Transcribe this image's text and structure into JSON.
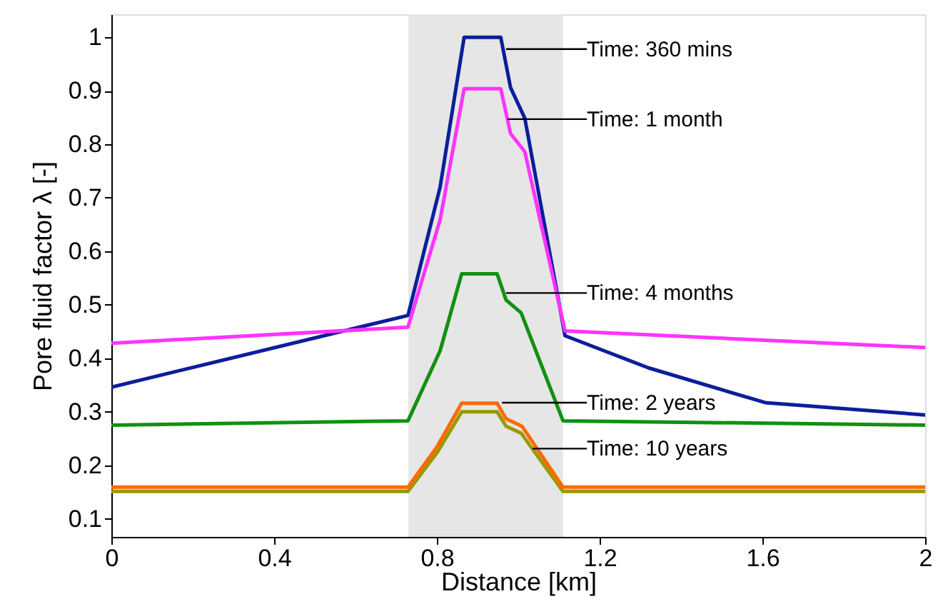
{
  "chart_data": {
    "type": "line",
    "xlabel": "Distance [km]",
    "ylabel": "Pore fluid factor λ [-]",
    "xlim": [
      0,
      2
    ],
    "xticks": [
      0,
      0.4,
      0.8,
      1.2,
      1.6,
      2
    ],
    "ylim": [
      0.066,
      1.043
    ],
    "yticks": [
      0.1,
      0.2,
      0.3,
      0.4,
      0.5,
      0.6,
      0.7,
      0.8,
      0.9,
      1
    ],
    "grid": false,
    "marker": "none",
    "line_style": "solid",
    "bands": [
      {
        "axis": "x",
        "from": 0.73,
        "to": 1.11,
        "color": "#e6e6e6"
      }
    ],
    "series": [
      {
        "color": "#0a1f9a",
        "x": [
          0,
          0.729,
          0.808,
          0.867,
          0.957,
          0.981,
          1.016,
          1.115,
          1.32,
          1.607,
          2
        ],
        "values": [
          0.346,
          0.48,
          0.72,
          1.0,
          1.0,
          0.906,
          0.849,
          0.442,
          0.382,
          0.317,
          0.294
        ]
      },
      {
        "color": "#ff33ff",
        "x": [
          0,
          0.729,
          0.808,
          0.867,
          0.957,
          0.981,
          1.016,
          1.115,
          2
        ],
        "values": [
          0.428,
          0.458,
          0.659,
          0.904,
          0.904,
          0.82,
          0.786,
          0.451,
          0.42
        ]
      },
      {
        "color": "#129012",
        "x": [
          0,
          0.729,
          0.808,
          0.861,
          0.948,
          0.97,
          1.007,
          1.11,
          2
        ],
        "values": [
          0.275,
          0.283,
          0.414,
          0.558,
          0.558,
          0.509,
          0.485,
          0.283,
          0.275
        ]
      },
      {
        "color": "#999900",
        "x": [
          0,
          0.729,
          0.8,
          0.861,
          0.948,
          0.97,
          1.007,
          1.11,
          2
        ],
        "values": [
          0.151,
          0.151,
          0.223,
          0.3,
          0.3,
          0.273,
          0.26,
          0.151,
          0.151
        ]
      },
      {
        "color": "#ff6a00",
        "x": [
          0,
          0.729,
          0.8,
          0.861,
          0.948,
          0.97,
          1.009,
          1.11,
          2
        ],
        "values": [
          0.159,
          0.159,
          0.234,
          0.316,
          0.316,
          0.287,
          0.273,
          0.159,
          0.159
        ]
      }
    ],
    "annotations": [
      {
        "text": "Time: 360 mins",
        "x": 0.97,
        "y": 0.978
      },
      {
        "text": "Time: 1 month",
        "x": 0.974,
        "y": 0.847
      },
      {
        "text": "Time: 4 months",
        "x": 0.97,
        "y": 0.522
      },
      {
        "text": "Time: 2 years",
        "x": 0.96,
        "y": 0.317
      },
      {
        "text": "Time: 10 years",
        "x": 1.035,
        "y": 0.231
      }
    ]
  }
}
